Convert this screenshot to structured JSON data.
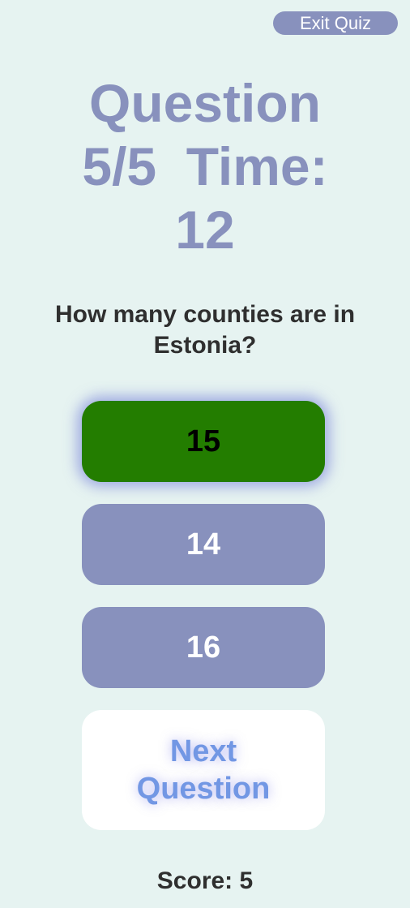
{
  "header": {
    "exit_label": "Exit Quiz"
  },
  "title": {
    "line1": "Question",
    "line2": "5/5  Time:",
    "line3": "12"
  },
  "question": {
    "line1": "How many counties are in",
    "line2": "Estonia?"
  },
  "answers": [
    {
      "label": "15",
      "state": "selected-correct"
    },
    {
      "label": "14",
      "state": "default"
    },
    {
      "label": "16",
      "state": "default"
    }
  ],
  "next_button": {
    "line1": "Next",
    "line2": "Question"
  },
  "score": {
    "text": "Score: 5"
  },
  "colors": {
    "background": "#e6f3f1",
    "accent": "#8891bd",
    "correct": "#237d00",
    "next_text": "#7297e4",
    "text": "#2f2f2f"
  }
}
